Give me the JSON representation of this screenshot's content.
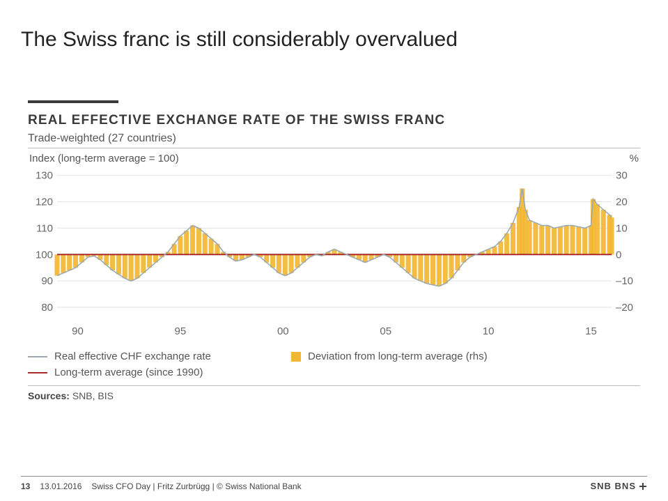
{
  "slide": {
    "title": "The Swiss franc is still considerably overvalued"
  },
  "chart": {
    "type": "line+bar",
    "title": "REAL EFFECTIVE EXCHANGE RATE OF THE SWISS FRANC",
    "subtitle": "Trade-weighted (27 countries)",
    "left_axis_label": "Index (long-term average = 100)",
    "right_axis_label": "%",
    "background_color": "#ffffff",
    "grid_color": "#e2e2e2",
    "axis_text_color": "#666666",
    "axis_fontsize": 15,
    "x": {
      "min": 1989,
      "max": 2016,
      "ticks": [
        1990,
        1995,
        2000,
        2005,
        2010,
        2015
      ],
      "tick_labels": [
        "90",
        "95",
        "00",
        "05",
        "10",
        "15"
      ]
    },
    "y_left": {
      "min": 75,
      "max": 132,
      "ticks": [
        80,
        90,
        100,
        110,
        120,
        130
      ]
    },
    "y_right": {
      "min": -25,
      "max": 32,
      "ticks": [
        -20,
        -10,
        0,
        10,
        20,
        30
      ]
    },
    "baseline": {
      "value": 100,
      "color": "#aa2a2a",
      "width": 2,
      "label": "Long-term average (since 1990)"
    },
    "series_line": {
      "label": "Real effective CHF exchange rate",
      "color": "#9aa9b3",
      "width": 1.6,
      "data": [
        [
          1989.0,
          92
        ],
        [
          1989.3,
          93
        ],
        [
          1989.6,
          94
        ],
        [
          1989.9,
          95
        ],
        [
          1990.2,
          97
        ],
        [
          1990.5,
          99
        ],
        [
          1990.8,
          99.5
        ],
        [
          1991.1,
          98
        ],
        [
          1991.4,
          96
        ],
        [
          1991.7,
          94
        ],
        [
          1992.0,
          92.5
        ],
        [
          1992.3,
          91
        ],
        [
          1992.6,
          90
        ],
        [
          1992.9,
          91
        ],
        [
          1993.2,
          93
        ],
        [
          1993.5,
          95
        ],
        [
          1993.8,
          97
        ],
        [
          1994.1,
          99
        ],
        [
          1994.4,
          101
        ],
        [
          1994.7,
          104
        ],
        [
          1995.0,
          107
        ],
        [
          1995.3,
          109
        ],
        [
          1995.6,
          111
        ],
        [
          1995.9,
          110
        ],
        [
          1996.2,
          108
        ],
        [
          1996.5,
          106
        ],
        [
          1996.8,
          104
        ],
        [
          1997.1,
          101
        ],
        [
          1997.4,
          99
        ],
        [
          1997.7,
          97.5
        ],
        [
          1998.0,
          98
        ],
        [
          1998.3,
          99
        ],
        [
          1998.6,
          100
        ],
        [
          1998.9,
          99
        ],
        [
          1999.2,
          97
        ],
        [
          1999.5,
          95
        ],
        [
          1999.8,
          93
        ],
        [
          2000.1,
          92
        ],
        [
          2000.4,
          93
        ],
        [
          2000.7,
          95
        ],
        [
          2001.0,
          97
        ],
        [
          2001.3,
          99
        ],
        [
          2001.6,
          100
        ],
        [
          2001.9,
          99.5
        ],
        [
          2002.2,
          101
        ],
        [
          2002.5,
          102
        ],
        [
          2002.8,
          101
        ],
        [
          2003.1,
          100
        ],
        [
          2003.4,
          99
        ],
        [
          2003.7,
          98
        ],
        [
          2004.0,
          97
        ],
        [
          2004.3,
          98
        ],
        [
          2004.6,
          99
        ],
        [
          2004.9,
          100
        ],
        [
          2005.2,
          99
        ],
        [
          2005.5,
          97
        ],
        [
          2005.8,
          95
        ],
        [
          2006.1,
          93
        ],
        [
          2006.4,
          91
        ],
        [
          2006.7,
          90
        ],
        [
          2007.0,
          89
        ],
        [
          2007.3,
          88.5
        ],
        [
          2007.6,
          88
        ],
        [
          2007.9,
          89
        ],
        [
          2008.2,
          91
        ],
        [
          2008.5,
          94
        ],
        [
          2008.8,
          97
        ],
        [
          2009.1,
          99
        ],
        [
          2009.4,
          100
        ],
        [
          2009.7,
          101
        ],
        [
          2010.0,
          102
        ],
        [
          2010.3,
          103
        ],
        [
          2010.6,
          105
        ],
        [
          2010.9,
          108
        ],
        [
          2011.2,
          112
        ],
        [
          2011.5,
          118
        ],
        [
          2011.65,
          125
        ],
        [
          2011.8,
          117
        ],
        [
          2012.0,
          113
        ],
        [
          2012.3,
          112
        ],
        [
          2012.6,
          111
        ],
        [
          2012.9,
          111
        ],
        [
          2013.2,
          110
        ],
        [
          2013.5,
          110.5
        ],
        [
          2013.8,
          111
        ],
        [
          2014.1,
          111
        ],
        [
          2014.4,
          110.5
        ],
        [
          2014.7,
          110
        ],
        [
          2015.0,
          111
        ],
        [
          2015.1,
          121
        ],
        [
          2015.3,
          119
        ],
        [
          2015.6,
          117
        ],
        [
          2015.9,
          115
        ],
        [
          2016.0,
          114
        ]
      ]
    },
    "series_bars": {
      "label": "Deviation from long-term average (rhs)",
      "color": "#f2b632",
      "opacity": 0.92,
      "bar_width": 0.24
    },
    "legend_items": [
      {
        "type": "line",
        "color": "#9aa9b3",
        "label": "Real effective CHF exchange rate"
      },
      {
        "type": "square",
        "color": "#f2b632",
        "label": "Deviation from long-term average (rhs)"
      },
      {
        "type": "line",
        "color": "#aa2a2a",
        "label": "Long-term average (since 1990)"
      }
    ],
    "sources_label": "Sources:",
    "sources_value": "SNB, BIS"
  },
  "footer": {
    "page": "13",
    "date": "13.01.2016",
    "context": "Swiss CFO Day | Fritz Zurbrügg |  © Swiss National Bank",
    "logo": "SNB BNS"
  }
}
